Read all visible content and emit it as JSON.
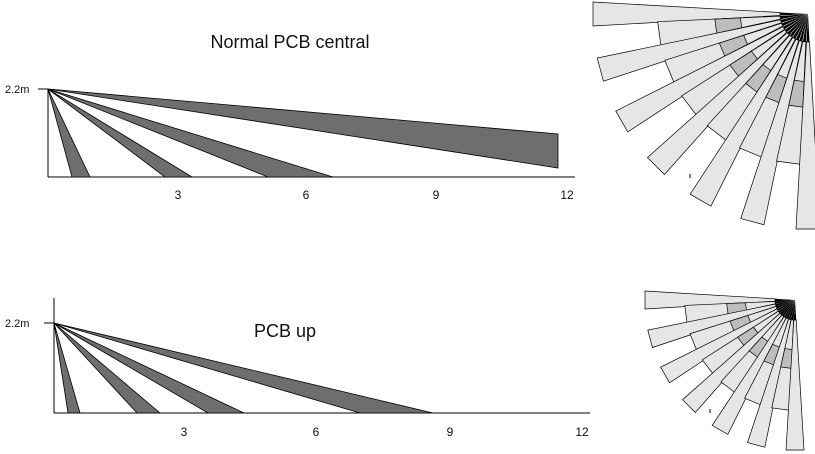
{
  "diagrams": [
    {
      "title": "Normal PCB central",
      "height_label": "2.2m",
      "tick_labels": [
        "3",
        "6",
        "9",
        "12"
      ],
      "ray_count_side": 4,
      "ray_count_top": 13,
      "light_fill": "#e6e6e6",
      "mid_fill": "#bdbdbd",
      "dark_fill": "#6e6e6e"
    },
    {
      "title": "PCB up",
      "height_label": "2.2m",
      "tick_labels": [
        "3",
        "6",
        "9",
        "12"
      ],
      "ray_count_side": 4,
      "ray_count_top": 13,
      "light_fill": "#e6e6e6",
      "mid_fill": "#bdbdbd",
      "dark_fill": "#6e6e6e"
    }
  ]
}
